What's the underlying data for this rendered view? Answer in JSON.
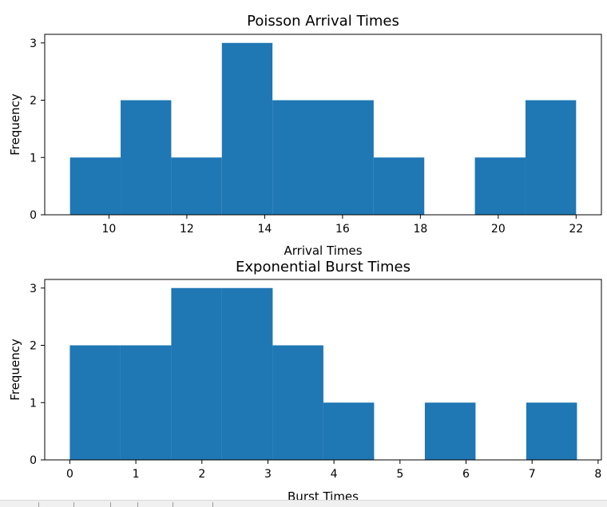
{
  "chart_data": [
    {
      "type": "bar",
      "title": "Poisson Arrival Times",
      "xlabel": "Arrival Times",
      "ylabel": "Frequency",
      "xlim": [
        8.35,
        22.65
      ],
      "ylim": [
        0,
        3.15
      ],
      "xticks": [
        10,
        12,
        14,
        16,
        18,
        20,
        22
      ],
      "yticks": [
        0,
        1,
        2,
        3
      ],
      "bar_color": "#1f77b4",
      "bins": [
        {
          "start": 9.0,
          "end": 10.3,
          "value": 1
        },
        {
          "start": 10.3,
          "end": 11.6,
          "value": 2
        },
        {
          "start": 11.6,
          "end": 12.9,
          "value": 1
        },
        {
          "start": 12.9,
          "end": 14.2,
          "value": 3
        },
        {
          "start": 14.2,
          "end": 15.5,
          "value": 2
        },
        {
          "start": 15.5,
          "end": 16.8,
          "value": 2
        },
        {
          "start": 16.8,
          "end": 18.1,
          "value": 1
        },
        {
          "start": 18.1,
          "end": 19.4,
          "value": 0
        },
        {
          "start": 19.4,
          "end": 20.7,
          "value": 1
        },
        {
          "start": 20.7,
          "end": 22.0,
          "value": 2
        }
      ]
    },
    {
      "type": "bar",
      "title": "Exponential Burst Times",
      "xlabel": "Burst Times",
      "ylabel": "Frequency",
      "xlim": [
        -0.38,
        8.05
      ],
      "ylim": [
        0,
        3.15
      ],
      "xticks": [
        0,
        1,
        2,
        3,
        4,
        5,
        6,
        7,
        8
      ],
      "yticks": [
        0,
        1,
        2,
        3
      ],
      "bar_color": "#1f77b4",
      "bins": [
        {
          "start": 0.0,
          "end": 0.768,
          "value": 2
        },
        {
          "start": 0.768,
          "end": 1.536,
          "value": 2
        },
        {
          "start": 1.536,
          "end": 2.304,
          "value": 3
        },
        {
          "start": 2.304,
          "end": 3.072,
          "value": 3
        },
        {
          "start": 3.072,
          "end": 3.84,
          "value": 2
        },
        {
          "start": 3.84,
          "end": 4.608,
          "value": 1
        },
        {
          "start": 4.608,
          "end": 5.376,
          "value": 0
        },
        {
          "start": 5.376,
          "end": 6.144,
          "value": 1
        },
        {
          "start": 6.144,
          "end": 6.912,
          "value": 0
        },
        {
          "start": 6.912,
          "end": 7.68,
          "value": 1
        }
      ]
    }
  ]
}
